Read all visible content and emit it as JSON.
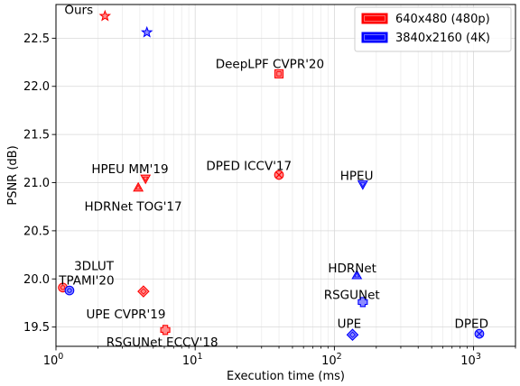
{
  "chart_data": {
    "type": "scatter",
    "xlabel": "Execution time (ms)",
    "ylabel": "PSNR (dB)",
    "xscale": "log",
    "xlim": [
      1,
      2000
    ],
    "ylim": [
      19.3,
      22.85
    ],
    "grid": true,
    "legend_position": "top-right",
    "x_ticks": [
      {
        "value": 1,
        "base": "10",
        "exp": "0"
      },
      {
        "value": 10,
        "base": "10",
        "exp": "1"
      },
      {
        "value": 100,
        "base": "10",
        "exp": "2"
      },
      {
        "value": 1000,
        "base": "10",
        "exp": "3"
      }
    ],
    "y_ticks": [
      "19.5",
      "20.0",
      "20.5",
      "21.0",
      "21.5",
      "22.0",
      "22.5"
    ],
    "legend": [
      {
        "label": "640x480 (480p)",
        "color": "#ff0000"
      },
      {
        "label": "3840x2160 (4K)",
        "color": "#0000ff"
      }
    ],
    "series": [
      {
        "resolution": "480p",
        "color": "#ff0000",
        "points": [
          {
            "label": "Ours",
            "x": 2.25,
            "y": 22.73,
            "marker": "star"
          },
          {
            "label": "DeepLPF CVPR'20",
            "x": 40,
            "y": 22.13,
            "marker": "square"
          },
          {
            "label": "HPEU MM'19",
            "x": 4.4,
            "y": 21.04,
            "marker": "triangle-down"
          },
          {
            "label": "DPED ICCV'17",
            "x": 40,
            "y": 21.08,
            "marker": "x-circle"
          },
          {
            "label": "HDRNet TOG'17",
            "x": 3.9,
            "y": 20.95,
            "marker": "triangle-up"
          },
          {
            "label": "3DLUT TPAMI'20",
            "x": 1.12,
            "y": 19.91,
            "marker": "circle"
          },
          {
            "label": "UPE CVPR'19",
            "x": 4.25,
            "y": 19.87,
            "marker": "diamond"
          },
          {
            "label": "RSGUNet ECCV'18",
            "x": 6.1,
            "y": 19.47,
            "marker": "plus"
          }
        ]
      },
      {
        "resolution": "4K",
        "color": "#0000ff",
        "points": [
          {
            "label": "",
            "x": 4.5,
            "y": 22.56,
            "marker": "star"
          },
          {
            "label": "HPEU",
            "x": 160,
            "y": 20.98,
            "marker": "triangle-down"
          },
          {
            "label": "HDRNet",
            "x": 145,
            "y": 20.04,
            "marker": "triangle-up"
          },
          {
            "label": "",
            "x": 1.25,
            "y": 19.88,
            "marker": "circle"
          },
          {
            "label": "RSGUNet",
            "x": 160,
            "y": 19.76,
            "marker": "plus"
          },
          {
            "label": "UPE",
            "x": 135,
            "y": 19.42,
            "marker": "diamond"
          },
          {
            "label": "DPED",
            "x": 1100,
            "y": 19.43,
            "marker": "x-circle"
          }
        ]
      }
    ],
    "annotations": [
      {
        "text": "Ours",
        "x": 1.15,
        "y": 22.75
      },
      {
        "text": "DeepLPF CVPR'20",
        "x": 14,
        "y": 22.19
      },
      {
        "text": "HPEU MM'19",
        "x": 1.8,
        "y": 21.1
      },
      {
        "text": "DPED ICCV'17",
        "x": 12,
        "y": 21.13
      },
      {
        "text": "HDRNet TOG'17",
        "x": 1.6,
        "y": 20.71
      },
      {
        "text": "3DLUT",
        "x": 1.35,
        "y": 20.09
      },
      {
        "text": "TPAMI'20",
        "x": 1.05,
        "y": 19.94
      },
      {
        "text": "UPE CVPR'19",
        "x": 1.65,
        "y": 19.59
      },
      {
        "text": "RSGUNet ECCV'18",
        "x": 2.3,
        "y": 19.3
      },
      {
        "text": "HPEU",
        "x": 110,
        "y": 21.03
      },
      {
        "text": "HDRNet",
        "x": 90,
        "y": 20.07
      },
      {
        "text": "RSGUNet",
        "x": 84,
        "y": 19.79
      },
      {
        "text": "UPE",
        "x": 105,
        "y": 19.49
      },
      {
        "text": "DPED",
        "x": 730,
        "y": 19.49
      }
    ]
  }
}
